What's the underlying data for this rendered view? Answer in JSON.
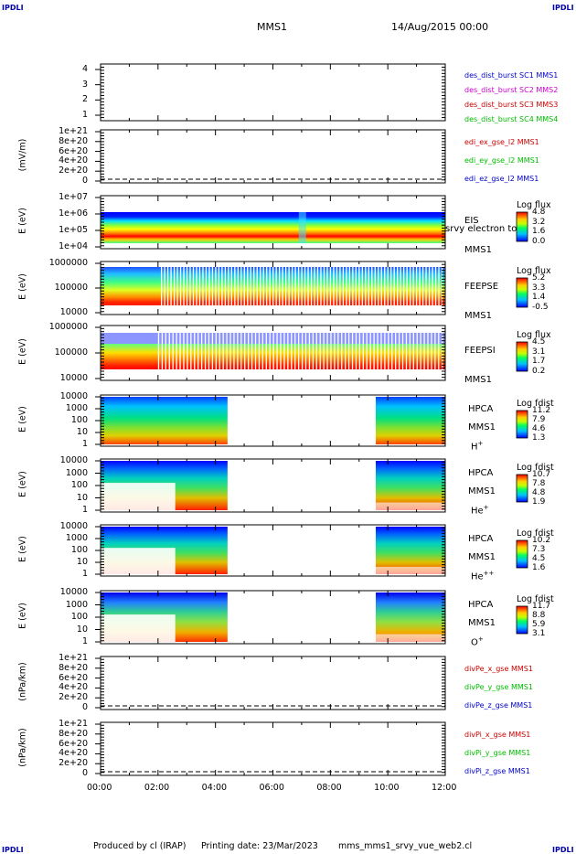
{
  "corners": {
    "tl": "IPDLI",
    "tr": "IPDLI",
    "bl": "IPDLI",
    "br": "IPDLI"
  },
  "header": {
    "title": "MMS1",
    "date": "14/Aug/2015 00:00"
  },
  "footer": {
    "producer": "Produced by cl (IRAP)",
    "printing": "Printing date: 23/Mar/2023",
    "file": "mms_mms1_srvy_vue_web2.cl"
  },
  "colors": {
    "blue": "#0000cc",
    "magenta": "#cc00cc",
    "red": "#cc0000",
    "green": "#00bb00"
  },
  "panels": [
    {
      "id": "dist",
      "ylabel": "",
      "ticks": [
        "4",
        "3",
        "2",
        "1"
      ],
      "legend": [
        {
          "text": "des_dist_burst SC1 MMS1",
          "color": "#0000cc"
        },
        {
          "text": "des_dist_burst SC2 MMS2",
          "color": "#cc00cc"
        },
        {
          "text": "des_dist_burst SC3 MMS3",
          "color": "#cc0000"
        },
        {
          "text": "des_dist_burst SC4 MMS4",
          "color": "#00bb00"
        }
      ]
    },
    {
      "id": "edi",
      "ylabel": "(mV/m)",
      "ticks": [
        "1e+21",
        "8e+20",
        "6e+20",
        "4e+20",
        "2e+20",
        "0"
      ],
      "legend": [
        {
          "text": "edi_ex_gse_l2 MMS1",
          "color": "#cc0000"
        },
        {
          "text": "edi_ey_gse_l2 MMS1",
          "color": "#00bb00"
        },
        {
          "text": "edi_ez_gse_l2 MMS1",
          "color": "#0000cc"
        }
      ]
    },
    {
      "id": "eis",
      "ylabel": "E (eV)",
      "ticks": [
        "1e+07",
        "1e+06",
        "1e+05",
        "1e+04"
      ],
      "right": [
        "EIS",
        "MMS1"
      ],
      "overlap": "srvy electron to",
      "cbar": {
        "title": "Log flux",
        "values": [
          "4.8",
          "3.2",
          "1.6",
          "0.0"
        ]
      }
    },
    {
      "id": "feepse",
      "ylabel": "E (eV)",
      "ticks": [
        "1000000",
        "100000",
        "10000"
      ],
      "right": [
        "FEEPSE",
        "MMS1"
      ],
      "cbar": {
        "title": "Log flux",
        "values": [
          "5.2",
          "3.3",
          "1.4",
          "-0.5"
        ]
      }
    },
    {
      "id": "feepsi",
      "ylabel": "E (eV)",
      "ticks": [
        "1000000",
        "100000",
        "10000"
      ],
      "right": [
        "FEEPSI",
        "MMS1"
      ],
      "cbar": {
        "title": "Log flux",
        "values": [
          "4.5",
          "3.1",
          "1.7",
          "0.2"
        ]
      }
    },
    {
      "id": "hpca_h",
      "ylabel": "E (eV)",
      "ticks": [
        "10000",
        "1000",
        "100",
        "10",
        "1"
      ],
      "right": [
        "HPCA",
        "MMS1"
      ],
      "species": "H",
      "sup": "+",
      "cbar": {
        "title": "Log fdist",
        "values": [
          "11.2",
          "7.9",
          "4.6",
          "1.3"
        ]
      }
    },
    {
      "id": "hpca_he",
      "ylabel": "E (eV)",
      "ticks": [
        "10000",
        "1000",
        "100",
        "10",
        "1"
      ],
      "right": [
        "HPCA",
        "MMS1"
      ],
      "species": "He",
      "sup": "+",
      "cbar": {
        "title": "Log fdist",
        "values": [
          "10.7",
          "7.8",
          "4.8",
          "1.9"
        ]
      }
    },
    {
      "id": "hpca_hepp",
      "ylabel": "E (eV)",
      "ticks": [
        "10000",
        "1000",
        "100",
        "10",
        "1"
      ],
      "right": [
        "HPCA",
        "MMS1"
      ],
      "species": "He",
      "sup": "++",
      "cbar": {
        "title": "Log fdist",
        "values": [
          "10.2",
          "7.3",
          "4.5",
          "1.6"
        ]
      }
    },
    {
      "id": "hpca_o",
      "ylabel": "E (eV)",
      "ticks": [
        "10000",
        "1000",
        "100",
        "10",
        "1"
      ],
      "right": [
        "HPCA",
        "MMS1"
      ],
      "species": "O",
      "sup": "+",
      "cbar": {
        "title": "Log fdist",
        "values": [
          "11.7",
          "8.8",
          "5.9",
          "3.1"
        ]
      }
    },
    {
      "id": "divpe",
      "ylabel": "(nPa/km)",
      "ticks": [
        "1e+21",
        "8e+20",
        "6e+20",
        "4e+20",
        "2e+20",
        "0"
      ],
      "legend": [
        {
          "text": "divPe_x_gse MMS1",
          "color": "#cc0000"
        },
        {
          "text": "divPe_y_gse MMS1",
          "color": "#00bb00"
        },
        {
          "text": "divPe_z_gse MMS1",
          "color": "#0000cc"
        }
      ]
    },
    {
      "id": "divpi",
      "ylabel": "(nPa/km)",
      "ticks": [
        "1e+21",
        "8e+20",
        "6e+20",
        "4e+20",
        "2e+20",
        "0"
      ],
      "legend": [
        {
          "text": "divPi_x_gse MMS1",
          "color": "#cc0000"
        },
        {
          "text": "divPi_y_gse MMS1",
          "color": "#00bb00"
        },
        {
          "text": "divPi_z_gse MMS1",
          "color": "#0000cc"
        }
      ]
    }
  ],
  "xaxis": {
    "ticks": [
      "00:00",
      "02:00",
      "04:00",
      "06:00",
      "08:00",
      "10:00",
      "12:00"
    ]
  },
  "chart_data": {
    "type": "heatmap",
    "title": "MMS1",
    "time_range": [
      "00:00",
      "12:00"
    ],
    "hpca_data_gap": [
      "04:25",
      "09:35"
    ],
    "eis_feature": "narrow dip near 07:00"
  }
}
